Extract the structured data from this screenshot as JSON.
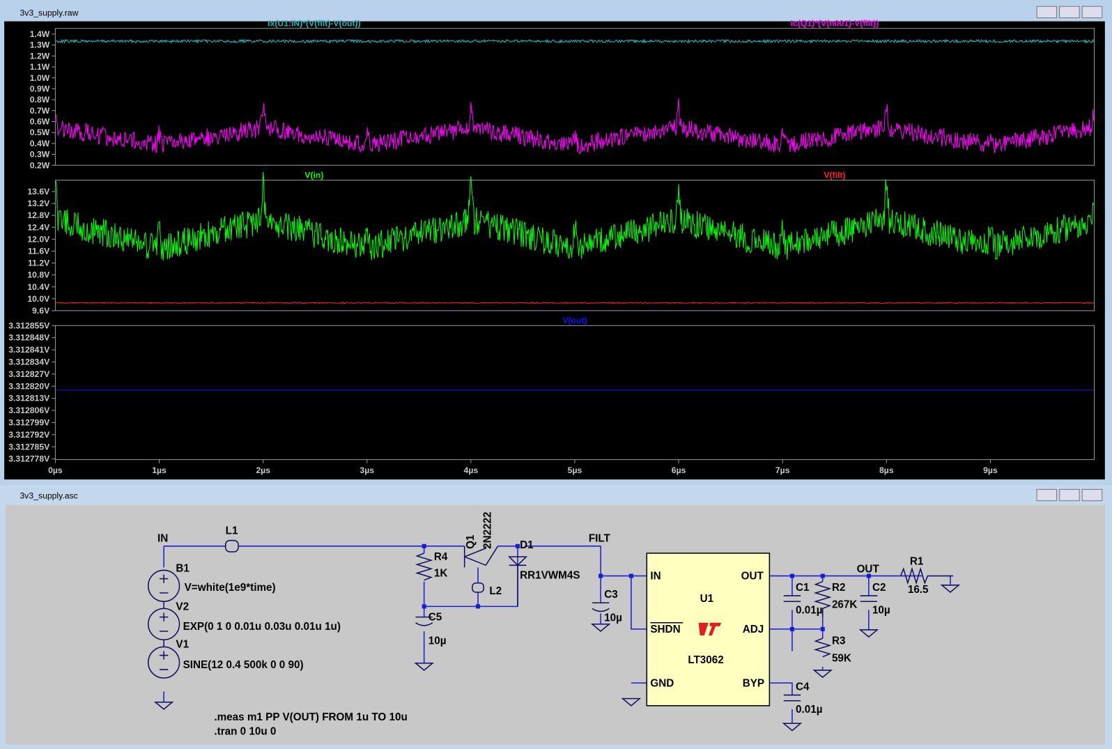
{
  "waveform_window": {
    "title": "3v3_supply.raw",
    "panes": [
      {
        "traces": [
          {
            "name": "Ix(U1:IN)*(V(filt)-V(out))",
            "color": "#20b8b8"
          },
          {
            "name": "Ic(Q1)*(V(n001)-V(filt))",
            "color": "#ff00ff"
          }
        ],
        "yticks": [
          "1.4W",
          "1.3W",
          "1.2W",
          "1.1W",
          "1.0W",
          "0.9W",
          "0.8W",
          "0.7W",
          "0.6W",
          "0.5W",
          "0.4W",
          "0.3W",
          "0.2W"
        ]
      },
      {
        "traces": [
          {
            "name": "V(in)",
            "color": "#00ff00"
          },
          {
            "name": "V(filt)",
            "color": "#ff2020"
          }
        ],
        "yticks": [
          "13.6V",
          "13.2V",
          "12.8V",
          "12.4V",
          "12.0V",
          "11.6V",
          "11.2V",
          "10.8V",
          "10.4V",
          "10.0V",
          "9.6V"
        ]
      },
      {
        "traces": [
          {
            "name": "V(out)",
            "color": "#1010ff"
          }
        ],
        "yticks": [
          "3.312855V",
          "3.312848V",
          "3.312841V",
          "3.312834V",
          "3.312827V",
          "3.312820V",
          "3.312813V",
          "3.312806V",
          "3.312799V",
          "3.312792V",
          "3.312785V",
          "3.312778V"
        ]
      }
    ],
    "xticks": [
      "0µs",
      "1µs",
      "2µs",
      "3µs",
      "4µs",
      "5µs",
      "6µs",
      "7µs",
      "8µs",
      "9µs"
    ]
  },
  "schematic_window": {
    "title": "3v3_supply.asc",
    "labels": {
      "in_net": "IN",
      "l1": "L1",
      "b1": "B1",
      "b1_value": "V=white(1e9*time)",
      "v2": "V2",
      "v2_value": "EXP(0 1 0 0.01u 0.03u 0.01u 1u)",
      "v1": "V1",
      "v1_value": "SINE(12 0.4 500k 0 0 90)",
      "meas": ".meas m1 PP V(OUT) FROM 1u TO 10u",
      "tran": ".tran 0 10u 0",
      "r4": "R4",
      "r4_value": "1K",
      "q1": "Q1",
      "q1_value": "2N2222",
      "d1": "D1",
      "d1_value": "RR1VWM4S",
      "l2": "L2",
      "c5": "C5",
      "c5_value": "10µ",
      "filt_net": "FILT",
      "c3": "C3",
      "c3_value": "10µ",
      "pin_in": "IN",
      "pin_out": "OUT",
      "u1": "U1",
      "pin_shdn": "SHDN",
      "pin_adj": "ADJ",
      "u1_value": "LT3062",
      "pin_gnd": "GND",
      "pin_byp": "BYP",
      "c1": "C1",
      "c1_value": "0.01µ",
      "r2": "R2",
      "r2_value": "267K",
      "c2": "C2",
      "c2_value": "10µ",
      "out_net": "OUT",
      "r1": "R1",
      "r1_value": "16.5",
      "r3": "R3",
      "r3_value": "59K",
      "c4": "C4",
      "c4_value": "0.01µ"
    }
  }
}
